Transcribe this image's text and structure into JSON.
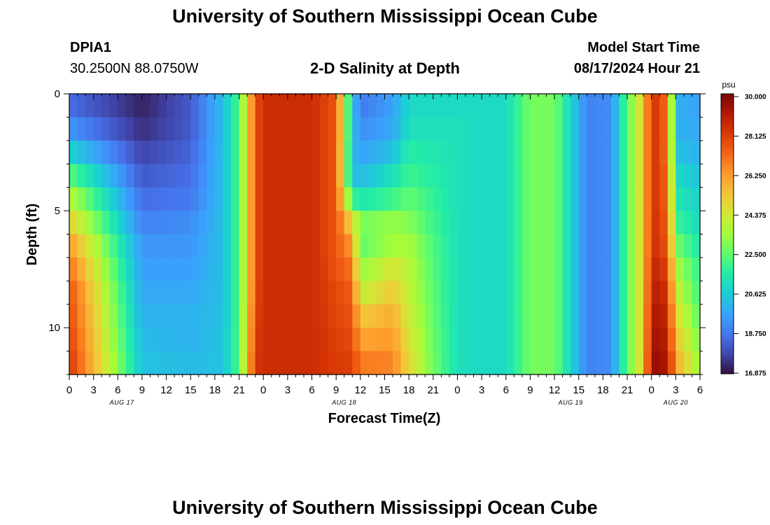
{
  "page_title": "University of Southern Mississippi Ocean Cube",
  "footer_title": "University of Southern Mississippi Ocean Cube",
  "station": {
    "id": "DPIA1",
    "coords": "30.2500N  88.0750W"
  },
  "plot_title": "2-D Salinity at Depth",
  "model_start": {
    "label": "Model Start Time",
    "value": "08/17/2024 Hour 21"
  },
  "chart_data": {
    "type": "heatmap",
    "title": "2-D Salinity at Depth",
    "xlabel": "Forecast Time(Z)",
    "ylabel": "Depth (ft)",
    "x_unit": "forecast hour",
    "x_tick_labels": [
      "0",
      "3",
      "6",
      "9",
      "12",
      "15",
      "18",
      "21",
      "0",
      "3",
      "6",
      "9",
      "12",
      "15",
      "18",
      "21",
      "0",
      "3",
      "6",
      "9",
      "12",
      "15",
      "18",
      "21",
      "0",
      "3",
      "6"
    ],
    "date_labels": [
      "AUG 17",
      "AUG 18",
      "AUG 19",
      "AUG 20"
    ],
    "ylim": [
      0,
      12
    ],
    "y_ticks": [
      0,
      5,
      10
    ],
    "y_tick_labels": [
      "0",
      "5",
      "10"
    ],
    "depth_levels_ft": [
      0.5,
      1.5,
      2.5,
      3.5,
      4.5,
      5.5,
      6.5,
      7.5,
      8.5,
      9.5,
      10.5,
      11.5
    ],
    "colorbar": {
      "unit": "psu",
      "min": 16.875,
      "max": 30.0,
      "tick_labels": [
        "30.000",
        "28.125",
        "26.250",
        "24.375",
        "22.500",
        "20.625",
        "18.750",
        "16.875"
      ]
    },
    "time_hours": [
      0,
      9,
      15,
      19,
      21,
      23,
      24,
      27,
      30,
      33,
      35,
      36,
      40,
      42,
      45,
      48,
      51,
      54,
      57,
      60,
      64,
      67,
      69,
      71,
      72,
      74,
      75,
      78
    ],
    "salinity_psu": [
      [
        18.6,
        17.2,
        18.2,
        20.3,
        22.3,
        27.5,
        28.5,
        28.5,
        28.5,
        27.5,
        20.5,
        18.8,
        19.6,
        21.0,
        21.0,
        21.0,
        21.0,
        21.0,
        22.8,
        22.8,
        19.0,
        19.2,
        22.5,
        25.0,
        28.5,
        27.0,
        20.0,
        19.6
      ],
      [
        19.4,
        17.4,
        18.2,
        20.3,
        22.3,
        27.5,
        28.5,
        28.5,
        28.5,
        27.5,
        20.5,
        19.2,
        19.8,
        21.2,
        21.2,
        21.2,
        21.0,
        21.0,
        22.8,
        22.8,
        19.0,
        19.2,
        22.5,
        25.0,
        28.5,
        27.0,
        20.0,
        19.8
      ],
      [
        20.8,
        17.8,
        18.4,
        20.3,
        22.3,
        27.5,
        28.5,
        28.5,
        28.5,
        27.5,
        20.3,
        19.6,
        20.4,
        21.6,
        21.4,
        21.2,
        21.0,
        21.0,
        22.8,
        22.8,
        19.0,
        19.2,
        22.5,
        25.0,
        28.5,
        27.0,
        20.4,
        20.0
      ],
      [
        22.4,
        18.2,
        18.6,
        20.3,
        22.3,
        27.5,
        28.5,
        28.5,
        28.5,
        27.5,
        20.3,
        20.2,
        21.2,
        22.0,
        21.6,
        21.2,
        21.0,
        21.0,
        22.8,
        22.8,
        19.0,
        19.2,
        22.5,
        25.0,
        28.5,
        27.2,
        21.0,
        20.4
      ],
      [
        23.8,
        18.6,
        18.8,
        20.3,
        22.3,
        27.5,
        28.5,
        28.5,
        28.5,
        27.5,
        22.0,
        21.4,
        22.0,
        22.5,
        21.8,
        21.2,
        21.0,
        21.0,
        22.8,
        22.8,
        19.0,
        19.2,
        22.5,
        25.0,
        28.5,
        27.2,
        21.4,
        20.8
      ],
      [
        25.0,
        19.0,
        19.2,
        20.3,
        22.3,
        27.5,
        28.5,
        28.5,
        28.5,
        27.5,
        24.8,
        22.8,
        23.2,
        23.0,
        22.0,
        21.2,
        21.0,
        21.0,
        22.8,
        22.8,
        19.0,
        19.2,
        22.5,
        25.0,
        28.5,
        27.4,
        22.0,
        21.0
      ],
      [
        26.2,
        19.4,
        19.4,
        20.3,
        22.3,
        27.5,
        28.5,
        28.5,
        28.5,
        27.5,
        26.2,
        22.5,
        23.5,
        23.5,
        22.2,
        21.2,
        21.0,
        21.0,
        22.8,
        22.8,
        19.0,
        19.2,
        22.5,
        25.0,
        28.5,
        27.6,
        22.8,
        21.4
      ],
      [
        27.0,
        19.6,
        19.6,
        20.3,
        22.3,
        27.5,
        28.5,
        28.5,
        28.5,
        27.6,
        27.0,
        23.2,
        24.5,
        23.8,
        22.3,
        21.2,
        21.0,
        21.0,
        22.8,
        22.8,
        19.0,
        19.2,
        22.5,
        25.0,
        28.8,
        28.0,
        23.6,
        21.8
      ],
      [
        27.6,
        19.8,
        19.8,
        20.3,
        22.3,
        27.6,
        28.5,
        28.5,
        28.5,
        27.8,
        27.4,
        24.0,
        25.2,
        24.0,
        22.4,
        21.2,
        21.0,
        21.0,
        22.8,
        22.8,
        19.0,
        19.2,
        22.5,
        25.0,
        29.0,
        28.4,
        24.2,
        22.0
      ],
      [
        27.8,
        20.0,
        20.0,
        20.3,
        22.3,
        27.8,
        28.5,
        28.5,
        28.5,
        27.9,
        27.6,
        25.2,
        25.8,
        24.2,
        22.5,
        21.2,
        21.0,
        21.0,
        22.8,
        22.8,
        19.0,
        19.2,
        22.5,
        25.0,
        29.2,
        28.7,
        24.8,
        22.4
      ],
      [
        28.0,
        20.2,
        20.0,
        20.4,
        22.3,
        28.0,
        28.5,
        28.5,
        28.5,
        28.0,
        27.8,
        26.0,
        26.2,
        24.5,
        22.6,
        21.2,
        21.0,
        21.0,
        22.8,
        22.8,
        19.0,
        19.2,
        22.5,
        25.0,
        29.4,
        28.9,
        25.4,
        22.8
      ],
      [
        28.2,
        20.4,
        20.2,
        20.4,
        22.3,
        28.2,
        28.5,
        28.5,
        28.5,
        28.1,
        28.0,
        26.8,
        26.6,
        24.8,
        22.7,
        21.2,
        21.0,
        21.0,
        22.8,
        22.8,
        19.0,
        19.2,
        22.5,
        25.0,
        29.6,
        29.1,
        26.0,
        23.2
      ]
    ]
  }
}
